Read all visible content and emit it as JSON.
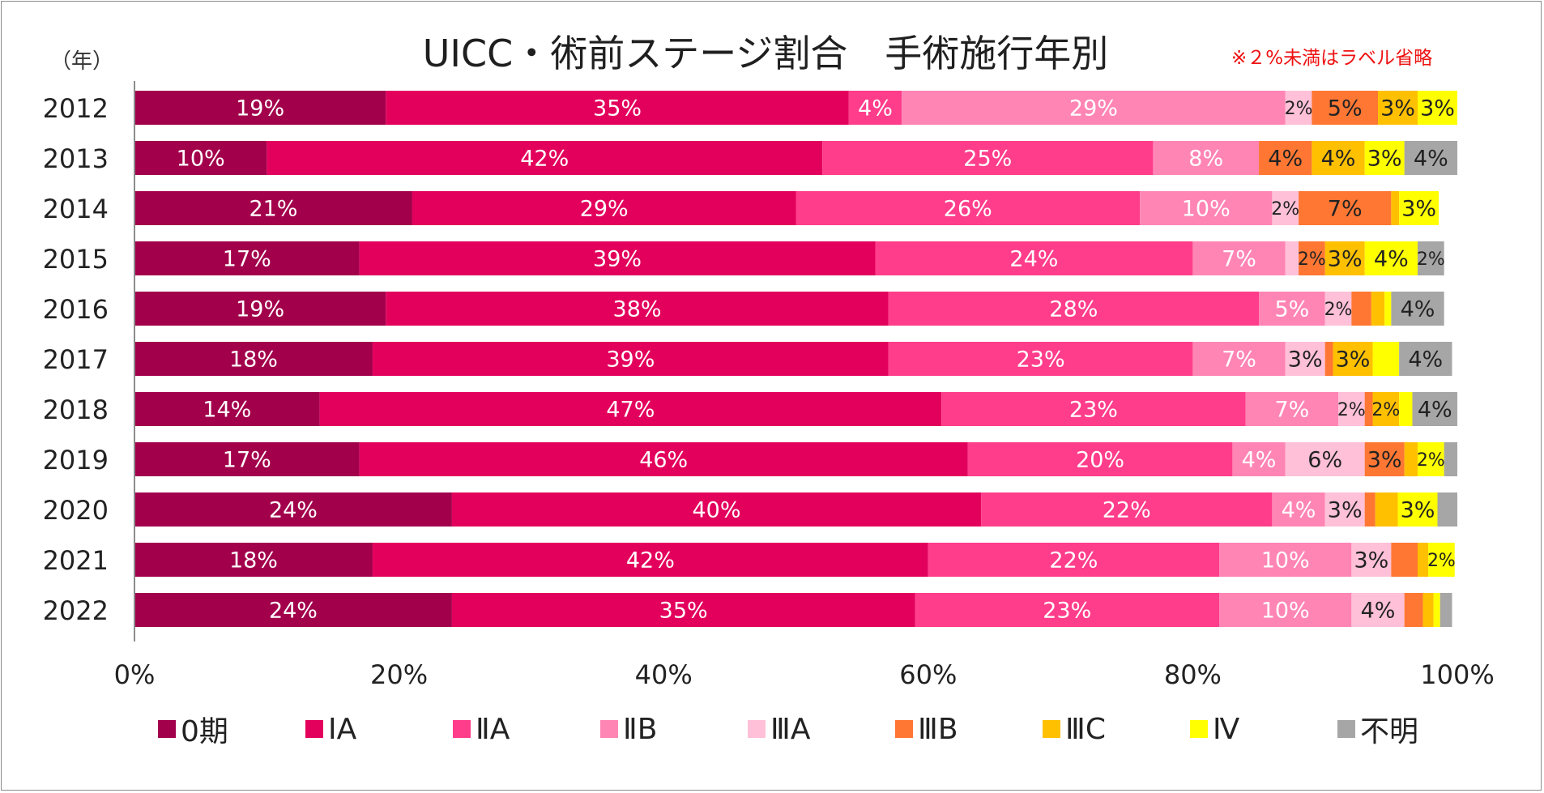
{
  "chart_data": {
    "type": "bar",
    "orientation": "horizontal",
    "stacked": true,
    "percent_stacked": true,
    "title": "UICC・術前ステージ割合　手術施行年別",
    "note": "※２%未満はラベル省略",
    "y_unit_label": "（年）",
    "categories": [
      "2012",
      "2013",
      "2014",
      "2015",
      "2016",
      "2017",
      "2018",
      "2019",
      "2020",
      "2021",
      "2022"
    ],
    "xlim": [
      0,
      100
    ],
    "x_ticks": [
      "0%",
      "20%",
      "40%",
      "60%",
      "80%",
      "100%"
    ],
    "grid": false,
    "legend_position": "bottom",
    "series": [
      {
        "name": "0期",
        "color": "#a3004c",
        "values": [
          19,
          10,
          21,
          17,
          19,
          18,
          14,
          17,
          24,
          18,
          24
        ],
        "labels": [
          "19%",
          "10%",
          "21%",
          "17%",
          "19%",
          "18%",
          "14%",
          "17%",
          "24%",
          "18%",
          "24%"
        ]
      },
      {
        "name": "ⅠA",
        "color": "#e3005c",
        "values": [
          35,
          42,
          29,
          39,
          38,
          39,
          47,
          46,
          40,
          42,
          35
        ],
        "labels": [
          "35%",
          "42%",
          "29%",
          "39%",
          "38%",
          "39%",
          "47%",
          "46%",
          "40%",
          "42%",
          "35%"
        ]
      },
      {
        "name": "ⅡA",
        "color": "#ff3d8b",
        "values": [
          4,
          25,
          26,
          24,
          28,
          23,
          23,
          20,
          22,
          22,
          23
        ],
        "labels": [
          "4%",
          "25%",
          "26%",
          "24%",
          "28%",
          "23%",
          "23%",
          "20%",
          "22%",
          "22%",
          "23%"
        ]
      },
      {
        "name": "ⅡB",
        "color": "#ff85b5",
        "values": [
          29,
          8,
          10,
          7,
          5,
          7,
          7,
          4,
          4,
          10,
          10
        ],
        "labels": [
          "29%",
          "8%",
          "10%",
          "7%",
          "5%",
          "7%",
          "7%",
          "4%",
          "4%",
          "10%",
          "10%"
        ]
      },
      {
        "name": "ⅢA",
        "color": "#ffc0d8",
        "values": [
          2,
          0,
          2,
          1,
          2,
          3,
          2,
          6,
          3,
          3,
          4
        ],
        "labels": [
          "2%",
          "",
          "2%",
          "",
          "2%",
          "3%",
          "2%",
          "6%",
          "3%",
          "3%",
          "4%"
        ]
      },
      {
        "name": "ⅢB",
        "color": "#ff7733",
        "values": [
          5,
          4,
          7,
          2,
          1.5,
          0.6,
          0.6,
          3,
          0.8,
          2,
          1.4
        ],
        "labels": [
          "5%",
          "4%",
          "7%",
          "2%",
          "",
          "",
          "",
          "3%",
          "",
          "",
          ""
        ]
      },
      {
        "name": "ⅢC",
        "color": "#ffc000",
        "values": [
          3,
          4,
          0.6,
          3,
          1,
          3,
          2,
          1,
          1.7,
          0.8,
          0.8
        ],
        "labels": [
          "3%",
          "4%",
          "",
          "3%",
          "",
          "3%",
          "2%",
          "",
          "",
          "",
          ""
        ]
      },
      {
        "name": "Ⅳ",
        "color": "#ffff00",
        "values": [
          3,
          3,
          3,
          4,
          0.5,
          2,
          1,
          2,
          3,
          2,
          0.5
        ],
        "labels": [
          "3%",
          "3%",
          "3%",
          "4%",
          "",
          "",
          "",
          "2%",
          "3%",
          "2%",
          ""
        ]
      },
      {
        "name": "不明",
        "color": "#a6a6a6",
        "values": [
          0,
          4,
          0,
          2,
          4,
          4,
          4,
          1,
          1.5,
          0,
          0.9
        ],
        "labels": [
          "",
          "4%",
          "",
          "2%",
          "4%",
          "4%",
          "4%",
          "",
          "",
          "",
          ""
        ]
      }
    ]
  }
}
